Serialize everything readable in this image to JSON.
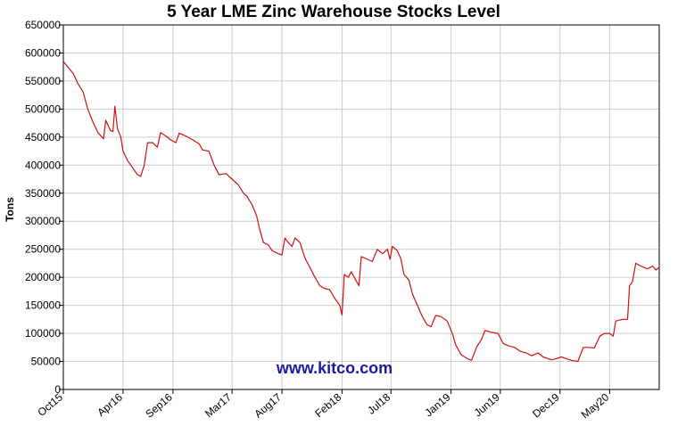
{
  "chart_data": {
    "type": "line",
    "title": "5 Year LME Zinc Warehouse Stocks Level",
    "xlabel": "",
    "ylabel": "Tons",
    "watermark": "www.kitco.com",
    "grid": true,
    "ylim": [
      0,
      650000
    ],
    "yticks": [
      0,
      50000,
      100000,
      150000,
      200000,
      250000,
      300000,
      350000,
      400000,
      450000,
      500000,
      550000,
      600000,
      650000
    ],
    "ytick_labels": [
      "0",
      "50000",
      "100000",
      "150000",
      "200000",
      "250000",
      "300000",
      "350000",
      "400000",
      "450000",
      "500000",
      "550000",
      "600000",
      "650000"
    ],
    "xlim": [
      "2015-10-01",
      "2020-09-30"
    ],
    "xticks": [
      "2015-10-01",
      "2016-04-01",
      "2016-09-01",
      "2017-03-01",
      "2017-08-01",
      "2018-02-01",
      "2018-07-01",
      "2019-01-01",
      "2019-06-01",
      "2019-12-01",
      "2020-05-01"
    ],
    "xtick_labels": [
      "Oct15",
      "Apr16",
      "Sep16",
      "Mar17",
      "Aug17",
      "Feb18",
      "Jul18",
      "Jan19",
      "Jun19",
      "Dec19",
      "May20"
    ],
    "colors": {
      "line": "#cc1111",
      "grid": "#cccccc",
      "axis": "#000000",
      "watermark": "#1a1aa6"
    },
    "series": [
      {
        "values": [
          [
            "2015-10-01",
            585000
          ],
          [
            "2015-10-15",
            575000
          ],
          [
            "2015-11-01",
            563000
          ],
          [
            "2015-11-15",
            545000
          ],
          [
            "2015-12-01",
            530000
          ],
          [
            "2015-12-15",
            500000
          ],
          [
            "2016-01-01",
            475000
          ],
          [
            "2016-01-15",
            458000
          ],
          [
            "2016-02-01",
            447000
          ],
          [
            "2016-02-08",
            480000
          ],
          [
            "2016-02-22",
            462000
          ],
          [
            "2016-03-01",
            460000
          ],
          [
            "2016-03-07",
            505000
          ],
          [
            "2016-03-15",
            465000
          ],
          [
            "2016-03-25",
            450000
          ],
          [
            "2016-04-01",
            425000
          ],
          [
            "2016-04-15",
            408000
          ],
          [
            "2016-05-01",
            395000
          ],
          [
            "2016-05-15",
            383000
          ],
          [
            "2016-05-25",
            380000
          ],
          [
            "2016-06-05",
            400000
          ],
          [
            "2016-06-15",
            440000
          ],
          [
            "2016-07-01",
            440000
          ],
          [
            "2016-07-15",
            432000
          ],
          [
            "2016-07-25",
            458000
          ],
          [
            "2016-08-10",
            452000
          ],
          [
            "2016-08-25",
            445000
          ],
          [
            "2016-09-10",
            440000
          ],
          [
            "2016-09-20",
            457000
          ],
          [
            "2016-10-10",
            452000
          ],
          [
            "2016-11-01",
            445000
          ],
          [
            "2016-11-20",
            438000
          ],
          [
            "2016-12-01",
            427000
          ],
          [
            "2016-12-20",
            425000
          ],
          [
            "2017-01-05",
            400000
          ],
          [
            "2017-01-20",
            383000
          ],
          [
            "2017-02-10",
            385000
          ],
          [
            "2017-03-01",
            375000
          ],
          [
            "2017-03-20",
            365000
          ],
          [
            "2017-04-05",
            350000
          ],
          [
            "2017-04-15",
            345000
          ],
          [
            "2017-05-01",
            330000
          ],
          [
            "2017-05-15",
            310000
          ],
          [
            "2017-05-25",
            285000
          ],
          [
            "2017-06-05",
            262000
          ],
          [
            "2017-06-20",
            258000
          ],
          [
            "2017-07-01",
            248000
          ],
          [
            "2017-07-20",
            242000
          ],
          [
            "2017-08-01",
            240000
          ],
          [
            "2017-08-10",
            270000
          ],
          [
            "2017-08-20",
            262000
          ],
          [
            "2017-09-01",
            255000
          ],
          [
            "2017-09-10",
            270000
          ],
          [
            "2017-09-25",
            262000
          ],
          [
            "2017-10-10",
            235000
          ],
          [
            "2017-10-25",
            218000
          ],
          [
            "2017-11-10",
            200000
          ],
          [
            "2017-11-25",
            185000
          ],
          [
            "2017-12-10",
            180000
          ],
          [
            "2017-12-25",
            178000
          ],
          [
            "2018-01-10",
            162000
          ],
          [
            "2018-01-25",
            150000
          ],
          [
            "2018-02-01",
            133000
          ],
          [
            "2018-02-08",
            205000
          ],
          [
            "2018-02-20",
            200000
          ],
          [
            "2018-03-01",
            210000
          ],
          [
            "2018-03-15",
            195000
          ],
          [
            "2018-03-25",
            185000
          ],
          [
            "2018-04-01",
            237000
          ],
          [
            "2018-04-20",
            232000
          ],
          [
            "2018-05-05",
            228000
          ],
          [
            "2018-05-20",
            250000
          ],
          [
            "2018-06-05",
            242000
          ],
          [
            "2018-06-20",
            250000
          ],
          [
            "2018-06-28",
            232000
          ],
          [
            "2018-07-05",
            255000
          ],
          [
            "2018-07-20",
            248000
          ],
          [
            "2018-08-01",
            232000
          ],
          [
            "2018-08-10",
            205000
          ],
          [
            "2018-08-25",
            195000
          ],
          [
            "2018-09-05",
            170000
          ],
          [
            "2018-09-20",
            150000
          ],
          [
            "2018-10-05",
            130000
          ],
          [
            "2018-10-20",
            115000
          ],
          [
            "2018-11-01",
            112000
          ],
          [
            "2018-11-15",
            132000
          ],
          [
            "2018-12-01",
            130000
          ],
          [
            "2018-12-20",
            122000
          ],
          [
            "2019-01-05",
            100000
          ],
          [
            "2019-01-15",
            80000
          ],
          [
            "2019-02-01",
            62000
          ],
          [
            "2019-02-20",
            55000
          ],
          [
            "2019-03-05",
            52000
          ],
          [
            "2019-03-20",
            75000
          ],
          [
            "2019-04-05",
            90000
          ],
          [
            "2019-04-15",
            105000
          ],
          [
            "2019-05-05",
            102000
          ],
          [
            "2019-05-25",
            100000
          ],
          [
            "2019-06-10",
            82000
          ],
          [
            "2019-06-25",
            78000
          ],
          [
            "2019-07-15",
            75000
          ],
          [
            "2019-08-01",
            68000
          ],
          [
            "2019-08-20",
            65000
          ],
          [
            "2019-09-05",
            60000
          ],
          [
            "2019-09-25",
            65000
          ],
          [
            "2019-10-10",
            58000
          ],
          [
            "2019-10-25",
            55000
          ],
          [
            "2019-11-05",
            53000
          ],
          [
            "2019-11-20",
            55000
          ],
          [
            "2019-12-05",
            58000
          ],
          [
            "2019-12-20",
            55000
          ],
          [
            "2020-01-05",
            52000
          ],
          [
            "2020-01-25",
            50000
          ],
          [
            "2020-02-10",
            75000
          ],
          [
            "2020-02-25",
            75000
          ],
          [
            "2020-03-15",
            74000
          ],
          [
            "2020-04-01",
            95000
          ],
          [
            "2020-04-15",
            100000
          ],
          [
            "2020-05-01",
            100000
          ],
          [
            "2020-05-12",
            95000
          ],
          [
            "2020-05-20",
            122000
          ],
          [
            "2020-06-10",
            125000
          ],
          [
            "2020-06-25",
            125000
          ],
          [
            "2020-07-01",
            185000
          ],
          [
            "2020-07-10",
            192000
          ],
          [
            "2020-07-20",
            225000
          ],
          [
            "2020-08-05",
            220000
          ],
          [
            "2020-08-25",
            215000
          ],
          [
            "2020-09-10",
            220000
          ],
          [
            "2020-09-20",
            213000
          ],
          [
            "2020-09-30",
            218000
          ]
        ]
      }
    ]
  }
}
